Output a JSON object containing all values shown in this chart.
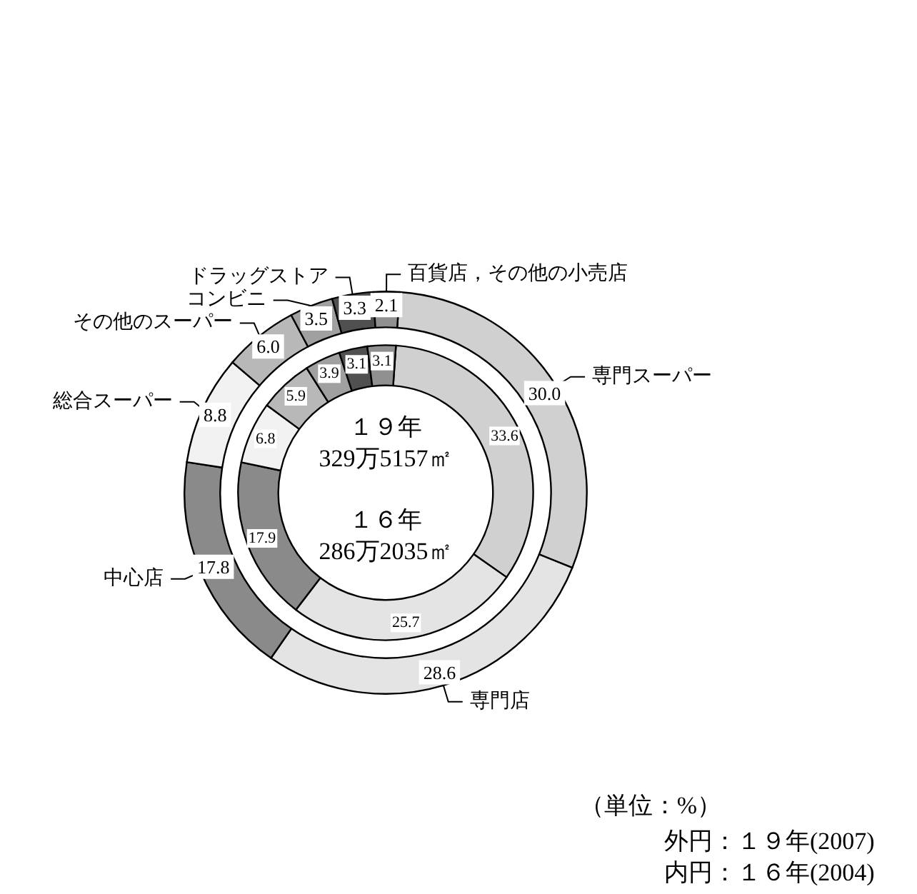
{
  "chart_data": {
    "type": "donut",
    "categories": [
      "専門スーパー",
      "専門店",
      "中心店",
      "総合スーパー",
      "その他のスーパー",
      "コンビニ",
      "ドラッグストア",
      "百貨店，その他の小売店"
    ],
    "series": [
      {
        "colors": [
          "#d0d0d0",
          "#e4e4e4",
          "#8a8a8a",
          "#f2f2f2",
          "#b8b8b8",
          "#a0a0a0",
          "#505050",
          "#909090"
        ],
        "values": [
          30.0,
          28.6,
          17.8,
          8.8,
          6.0,
          3.5,
          3.3,
          2.1
        ],
        "value_labels": [
          "30.0",
          "28.6",
          "17.8",
          "8.8",
          "6.0",
          "3.5",
          "3.3",
          "2.1"
        ]
      },
      {
        "colors": [
          "#d0d0d0",
          "#e4e4e4",
          "#8a8a8a",
          "#f2f2f2",
          "#b8b8b8",
          "#a0a0a0",
          "#505050",
          "#909090"
        ],
        "values": [
          33.6,
          25.7,
          17.9,
          6.8,
          5.9,
          3.9,
          3.1,
          3.1
        ],
        "value_labels": [
          "33.6",
          "25.7",
          "17.9",
          "6.8",
          "5.9",
          "3.9",
          "3.1",
          "3.1"
        ]
      }
    ],
    "legend": false,
    "annotations": [
      "１９年\n329万5157㎡",
      "１６年\n286万2035㎡",
      "（単位：%）",
      "外円：１９年(2007)",
      "内円：１６年(2004)"
    ]
  }
}
